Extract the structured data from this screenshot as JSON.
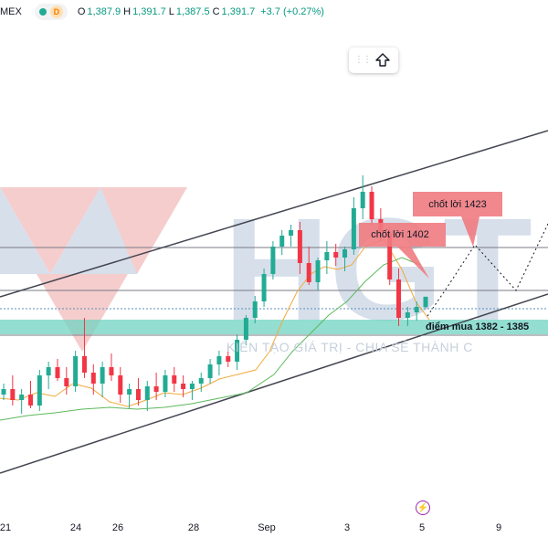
{
  "legend": {
    "symbol_suffix": "MEX",
    "badge": "D",
    "open_label": "O",
    "open": "1,387.9",
    "high_label": "H",
    "high": "1,391.7",
    "low_label": "L",
    "low": "1,387.5",
    "close_label": "C",
    "close": "1,391.7",
    "change": "+3.7 (+0.27%)",
    "up_color": "#089981"
  },
  "toolbar": {
    "grip_icon": "drag-handle-icon",
    "action_icon": "arrow-up-icon"
  },
  "watermark": {
    "logo_text": "HGT",
    "slogan": "KIẾN TẠO GIÁ TRỊ - CHIA SẺ THÀNH C"
  },
  "annotations": {
    "take_profit_1": "chốt lời 1402",
    "take_profit_2": "chốt lời 1423",
    "buy_zone": "điểm mua 1382 - 1385",
    "callout_color": "#f07b81",
    "zone_color": "#6fd3c0"
  },
  "xaxis": {
    "ticks": [
      "21",
      "24",
      "26",
      "28",
      "Sep",
      "3",
      "5",
      "9"
    ]
  },
  "event_icon": "lightning-icon",
  "chart_data": {
    "type": "candlestick",
    "candles_ohlc": [
      [
        1356,
        1360,
        1354,
        1358
      ],
      [
        1358,
        1363,
        1352,
        1354
      ],
      [
        1354,
        1358,
        1349,
        1356
      ],
      [
        1356,
        1361,
        1351,
        1352
      ],
      [
        1352,
        1365,
        1350,
        1363
      ],
      [
        1363,
        1368,
        1358,
        1366
      ],
      [
        1366,
        1369,
        1361,
        1362
      ],
      [
        1362,
        1366,
        1356,
        1359
      ],
      [
        1359,
        1372,
        1357,
        1370
      ],
      [
        1370,
        1384,
        1362,
        1364
      ],
      [
        1364,
        1367,
        1356,
        1360
      ],
      [
        1360,
        1368,
        1355,
        1366
      ],
      [
        1366,
        1371,
        1361,
        1363
      ],
      [
        1363,
        1366,
        1353,
        1356
      ],
      [
        1356,
        1360,
        1351,
        1358
      ],
      [
        1358,
        1362,
        1352,
        1354
      ],
      [
        1354,
        1361,
        1350,
        1359
      ],
      [
        1359,
        1364,
        1354,
        1357
      ],
      [
        1357,
        1365,
        1355,
        1363
      ],
      [
        1363,
        1366,
        1357,
        1360
      ],
      [
        1360,
        1363,
        1355,
        1358
      ],
      [
        1358,
        1361,
        1354,
        1360
      ],
      [
        1360,
        1364,
        1357,
        1362
      ],
      [
        1362,
        1369,
        1360,
        1367
      ],
      [
        1367,
        1372,
        1363,
        1370
      ],
      [
        1370,
        1374,
        1366,
        1368
      ],
      [
        1368,
        1378,
        1365,
        1376
      ],
      [
        1376,
        1385,
        1374,
        1384
      ],
      [
        1384,
        1392,
        1382,
        1390
      ],
      [
        1390,
        1402,
        1388,
        1400
      ],
      [
        1400,
        1412,
        1398,
        1410
      ],
      [
        1410,
        1416,
        1407,
        1414
      ],
      [
        1414,
        1418,
        1410,
        1416
      ],
      [
        1416,
        1419,
        1400,
        1404
      ],
      [
        1404,
        1410,
        1396,
        1397
      ],
      [
        1397,
        1406,
        1394,
        1405
      ],
      [
        1405,
        1412,
        1400,
        1408
      ],
      [
        1408,
        1411,
        1403,
        1406
      ],
      [
        1406,
        1410,
        1401,
        1409
      ],
      [
        1409,
        1428,
        1407,
        1424
      ],
      [
        1424,
        1436,
        1420,
        1430
      ],
      [
        1430,
        1432,
        1418,
        1420
      ],
      [
        1420,
        1424,
        1412,
        1415
      ],
      [
        1415,
        1417,
        1396,
        1398
      ],
      [
        1398,
        1402,
        1381,
        1384
      ],
      [
        1384,
        1388,
        1381,
        1386
      ],
      [
        1386,
        1390,
        1383,
        1388
      ],
      [
        1387.9,
        1391.7,
        1387.5,
        1391.7
      ]
    ],
    "price_levels": [
      1414,
      1402,
      1389
    ],
    "buy_zone_range": [
      1382,
      1385
    ],
    "take_profit_levels": [
      1402,
      1423
    ],
    "x_tick_labels": [
      "21",
      "24",
      "26",
      "28",
      "Sep",
      "3",
      "5",
      "9"
    ]
  }
}
